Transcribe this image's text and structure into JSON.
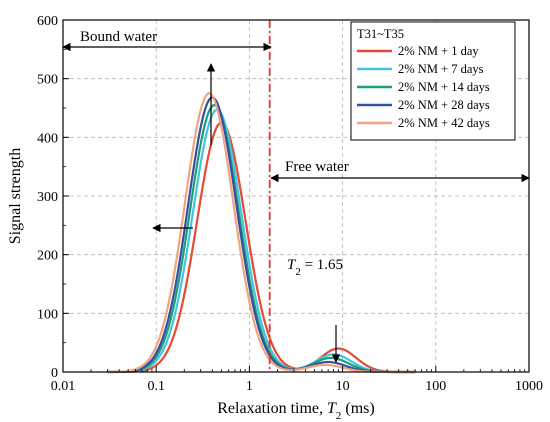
{
  "chart_data": {
    "type": "line",
    "xlabel_prefix": "Relaxation time, ",
    "xlabel_symbol": "T",
    "xlabel_sub": "2",
    "xlabel_suffix": " (ms)",
    "ylabel": "Signal strength",
    "xscale": "log",
    "xlim": [
      0.01,
      1000
    ],
    "ylim": [
      0,
      600
    ],
    "x_ticks": [
      "0.01",
      "0.1",
      "1",
      "10",
      "100",
      "1000"
    ],
    "y_ticks": [
      "0",
      "100",
      "200",
      "300",
      "400",
      "500",
      "600"
    ],
    "grid": true,
    "legend_title": "T31~T35",
    "legend_position": "top-right",
    "threshold": {
      "x": 1.65,
      "label_symbol": "T",
      "label_sub": "2",
      "label_value": " = 1.65",
      "color": "#e8332a"
    },
    "region_labels": {
      "bound": "Bound water",
      "free": "Free water"
    },
    "series": [
      {
        "name": "2% NM + 1 day",
        "color": "#e64a35",
        "peak1": {
          "x": 0.5,
          "y": 425
        },
        "peak2": {
          "x": 9.0,
          "y": 40
        }
      },
      {
        "name": "2% NM + 7 days",
        "color": "#45c4dd",
        "peak1": {
          "x": 0.45,
          "y": 447
        },
        "peak2": {
          "x": 8.0,
          "y": 30
        }
      },
      {
        "name": "2% NM + 14 days",
        "color": "#1c9c7e",
        "peak1": {
          "x": 0.42,
          "y": 455
        },
        "peak2": {
          "x": 7.5,
          "y": 24
        }
      },
      {
        "name": "2% NM + 28 days",
        "color": "#3451a0",
        "peak1": {
          "x": 0.4,
          "y": 468
        },
        "peak2": {
          "x": 7.0,
          "y": 17
        }
      },
      {
        "name": "2% NM + 42 days",
        "color": "#f2a47e",
        "peak1": {
          "x": 0.37,
          "y": 475
        },
        "peak2": {
          "x": 6.5,
          "y": 12
        }
      }
    ]
  }
}
